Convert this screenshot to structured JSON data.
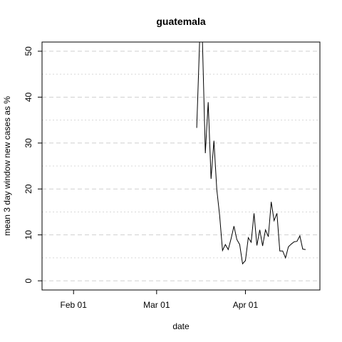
{
  "chart_data": {
    "type": "line",
    "title": "guatemala",
    "xlabel": "date",
    "ylabel": "mean  3  day window new cases as %",
    "xlim": [
      "2020-01-21",
      "2020-04-27"
    ],
    "ylim": [
      -2,
      52
    ],
    "x_ticks": [
      {
        "date": "2020-02-01",
        "label": "Feb 01"
      },
      {
        "date": "2020-03-01",
        "label": "Mar 01"
      },
      {
        "date": "2020-04-01",
        "label": "Apr 01"
      }
    ],
    "y_ticks": [
      0,
      10,
      20,
      30,
      40,
      50
    ],
    "y_minor_gridlines": [
      5,
      15,
      25,
      35,
      45
    ],
    "grid": true,
    "series": [
      {
        "points": [
          {
            "x": "2020-03-15",
            "y": 33.3
          },
          {
            "x": "2020-03-16",
            "y": 52
          },
          {
            "x": "2020-03-17",
            "y": 52
          },
          {
            "x": "2020-03-18",
            "y": 27.8
          },
          {
            "x": "2020-03-19",
            "y": 38.9
          },
          {
            "x": "2020-03-20",
            "y": 22.2
          },
          {
            "x": "2020-03-21",
            "y": 30.5
          },
          {
            "x": "2020-03-22",
            "y": 19.9
          },
          {
            "x": "2020-03-23",
            "y": 14.2
          },
          {
            "x": "2020-03-24",
            "y": 6.6
          },
          {
            "x": "2020-03-25",
            "y": 7.9
          },
          {
            "x": "2020-03-26",
            "y": 6.8
          },
          {
            "x": "2020-03-27",
            "y": 9.2
          },
          {
            "x": "2020-03-28",
            "y": 11.9
          },
          {
            "x": "2020-03-29",
            "y": 9.0
          },
          {
            "x": "2020-03-30",
            "y": 7.9
          },
          {
            "x": "2020-03-31",
            "y": 3.7
          },
          {
            "x": "2020-04-01",
            "y": 4.4
          },
          {
            "x": "2020-04-02",
            "y": 9.4
          },
          {
            "x": "2020-04-03",
            "y": 8.4
          },
          {
            "x": "2020-04-04",
            "y": 14.7
          },
          {
            "x": "2020-04-05",
            "y": 7.7
          },
          {
            "x": "2020-04-06",
            "y": 11.1
          },
          {
            "x": "2020-04-07",
            "y": 7.6
          },
          {
            "x": "2020-04-08",
            "y": 11.1
          },
          {
            "x": "2020-04-09",
            "y": 9.6
          },
          {
            "x": "2020-04-10",
            "y": 17.2
          },
          {
            "x": "2020-04-11",
            "y": 13.1
          },
          {
            "x": "2020-04-12",
            "y": 14.7
          },
          {
            "x": "2020-04-13",
            "y": 6.5
          },
          {
            "x": "2020-04-14",
            "y": 6.5
          },
          {
            "x": "2020-04-15",
            "y": 5.0
          },
          {
            "x": "2020-04-16",
            "y": 7.4
          },
          {
            "x": "2020-04-17",
            "y": 8.0
          },
          {
            "x": "2020-04-18",
            "y": 8.5
          },
          {
            "x": "2020-04-19",
            "y": 8.6
          },
          {
            "x": "2020-04-20",
            "y": 9.8
          },
          {
            "x": "2020-04-21",
            "y": 6.9
          },
          {
            "x": "2020-04-22",
            "y": 6.8
          }
        ],
        "color": "#000000"
      }
    ]
  }
}
